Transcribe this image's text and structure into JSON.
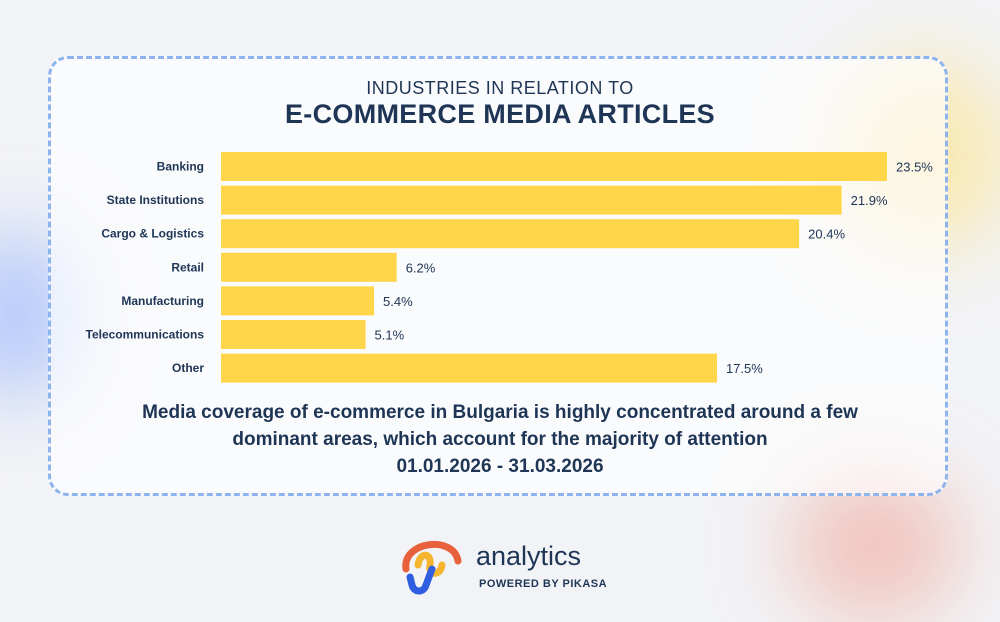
{
  "header": {
    "subtitle": "INDUSTRIES IN RELATION TO",
    "title": "E-COMMERCE MEDIA ARTICLES"
  },
  "chart_data": {
    "type": "bar",
    "orientation": "horizontal",
    "categories": [
      "Banking",
      "State Institutions",
      "Cargo & Logistics",
      "Retail",
      "Manufacturing",
      "Telecommunications",
      "Other"
    ],
    "values": [
      23.5,
      21.9,
      20.4,
      6.2,
      5.4,
      5.1,
      17.5
    ],
    "value_labels": [
      "23.5%",
      "21.9%",
      "20.4%",
      "6.2%",
      "5.4%",
      "5.1%",
      "17.5%"
    ],
    "unit": "%",
    "xlim": [
      0,
      23.5
    ],
    "grid": false,
    "legend": "none",
    "bar_color": "#ffd54a"
  },
  "caption": {
    "line1": "Media coverage of e-commerce in Bulgaria is highly concentrated around a few",
    "line2": "dominant areas, which account for the majority of attention",
    "date_range": "01.01.2026 - 31.03.2026"
  },
  "footer": {
    "brand": "analytics",
    "powered_by": "POWERED BY PIKASA",
    "logo_colors": [
      "#e8613c",
      "#f5b52e",
      "#2f5fe0"
    ]
  },
  "colors": {
    "text": "#1e3556",
    "card_border": "#8db4ec",
    "background": "#f2f3f6"
  }
}
